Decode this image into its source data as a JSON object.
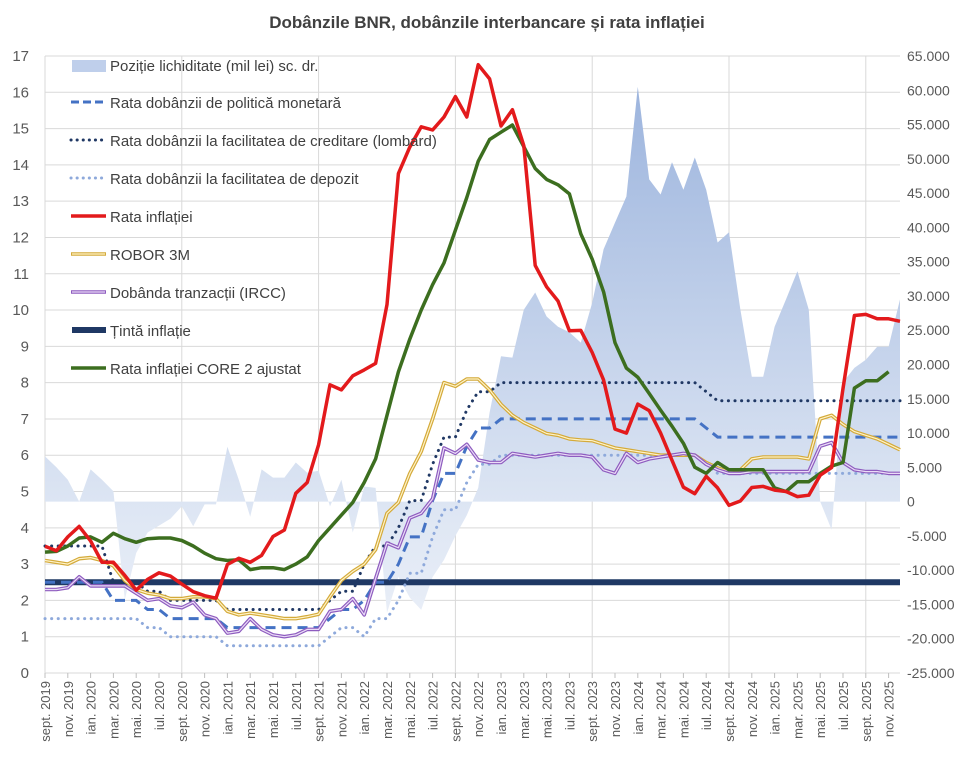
{
  "chart_data": {
    "type": "line",
    "title": "Dobânzile BNR, dobânzile interbancare și rata inflației",
    "legend_placement": "top-left (inside plot)",
    "grid": true,
    "x": [
      "sept. 2019",
      "oct. 2019",
      "nov. 2019",
      "dec. 2019",
      "ian. 2020",
      "feb. 2020",
      "mar. 2020",
      "apr. 2020",
      "mai. 2020",
      "iun. 2020",
      "iul. 2020",
      "aug. 2020",
      "sept. 2020",
      "oct. 2020",
      "nov. 2020",
      "dec. 2020",
      "ian. 2021",
      "feb. 2021",
      "mar. 2021",
      "apr. 2021",
      "mai. 2021",
      "iun. 2021",
      "iul. 2021",
      "aug. 2021",
      "sept. 2021",
      "oct. 2021",
      "nov. 2021",
      "dec. 2021",
      "ian. 2022",
      "feb. 2022",
      "mar. 2022",
      "apr. 2022",
      "mai. 2022",
      "iun. 2022",
      "iul. 2022",
      "aug. 2022",
      "sept. 2022",
      "oct. 2022",
      "nov. 2022",
      "dec. 2022",
      "ian. 2023",
      "feb. 2023",
      "mar. 2023",
      "apr. 2023",
      "mai. 2023",
      "iun. 2023",
      "iul. 2023",
      "aug. 2023",
      "sept. 2023",
      "oct. 2023",
      "nov. 2023",
      "dec. 2023",
      "ian. 2024",
      "feb. 2024",
      "mar. 2024",
      "apr. 2024",
      "mai. 2024",
      "iun. 2024",
      "iul. 2024",
      "aug. 2024",
      "sept. 2024",
      "oct. 2024",
      "nov. 2024",
      "dec. 2024",
      "ian. 2025",
      "feb. 2025",
      "mar. 2025",
      "apr. 2025",
      "mai. 2025",
      "iun. 2025",
      "iul. 2025",
      "aug. 2025",
      "sept. 2025",
      "oct. 2025",
      "nov. 2025",
      "dec. 2025"
    ],
    "x_tick_labels": [
      "sept. 2019",
      "nov. 2019",
      "ian. 2020",
      "mar. 2020",
      "mai. 2020",
      "iul. 2020",
      "sept. 2020",
      "nov. 2020",
      "ian. 2021",
      "mar. 2021",
      "mai. 2021",
      "iul. 2021",
      "sept. 2021",
      "nov. 2021",
      "ian. 2022",
      "mar. 2022",
      "mai. 2022",
      "iul. 2022",
      "sept. 2022",
      "nov. 2022",
      "ian. 2023",
      "mar. 2023",
      "mai. 2023",
      "iul. 2023",
      "sept. 2023",
      "nov. 2023",
      "ian. 2024",
      "mar. 2024",
      "mai. 2024",
      "iul. 2024",
      "sept. 2024",
      "nov. 2024",
      "ian. 2025",
      "mar. 2025",
      "mai. 2025",
      "iul. 2025",
      "sept. 2025",
      "nov. 2025"
    ],
    "y_left": {
      "range": [
        0,
        17
      ],
      "ticks": [
        "0",
        "1",
        "2",
        "3",
        "4",
        "5",
        "6",
        "7",
        "8",
        "9",
        "10",
        "11",
        "12",
        "13",
        "14",
        "15",
        "16",
        "17"
      ]
    },
    "y_right": {
      "range": [
        -25000,
        65000
      ],
      "ticks": [
        "-25.000",
        "-20.000",
        "-15.000",
        "-10.000",
        "-5.000",
        "0",
        "5.000",
        "10.000",
        "15.000",
        "20.000",
        "25.000",
        "30.000",
        "35.000",
        "40.000",
        "45.000",
        "50.000",
        "55.000",
        "60.000",
        "65.000"
      ]
    },
    "series": [
      {
        "name": "Poziție lichiditate (mil lei) sc. dr.",
        "kind": "area",
        "axis": "right",
        "color": "#8faadc",
        "values": [
          6600,
          5000,
          3200,
          0,
          4700,
          3200,
          1500,
          -14300,
          -7500,
          -4500,
          -3500,
          -2500,
          -700,
          -3600,
          -400,
          -400,
          8000,
          3200,
          -2200,
          4700,
          3500,
          3500,
          5700,
          4200,
          4500,
          -700,
          3200,
          -4500,
          2200,
          2000,
          -16200,
          -11000,
          -14000,
          -15800,
          -11000,
          -8500,
          -5000,
          -2000,
          2000,
          13000,
          21200,
          21000,
          28000,
          30500,
          27000,
          25500,
          24700,
          23200,
          29000,
          36800,
          40700,
          44500,
          60500,
          47000,
          44800,
          49500,
          45500,
          50200,
          45500,
          37800,
          39300,
          28000,
          18200,
          18200,
          25500,
          29500,
          33600,
          28000,
          0,
          -4100,
          17400,
          19500,
          20700,
          22600,
          22600,
          29500
        ]
      },
      {
        "name": "Rata dobânzii de politică monetară",
        "kind": "dashed",
        "axis": "left",
        "color": "#4472c4",
        "values": [
          2.5,
          2.5,
          2.5,
          2.5,
          2.5,
          2.5,
          2,
          2,
          2,
          1.75,
          1.75,
          1.5,
          1.5,
          1.5,
          1.5,
          1.5,
          1.25,
          1.25,
          1.25,
          1.25,
          1.25,
          1.25,
          1.25,
          1.25,
          1.25,
          1.5,
          1.75,
          1.75,
          2,
          2.5,
          2.5,
          3,
          3.75,
          3.75,
          4.75,
          5.5,
          5.5,
          6.25,
          6.75,
          6.75,
          7,
          7,
          7,
          7,
          7,
          7,
          7,
          7,
          7,
          7,
          7,
          7,
          7,
          7,
          7,
          7,
          7,
          7,
          6.75,
          6.5,
          6.5,
          6.5,
          6.5,
          6.5,
          6.5,
          6.5,
          6.5,
          6.5,
          6.5,
          6.5,
          6.5,
          6.5,
          6.5,
          6.5,
          6.5,
          6.5
        ]
      },
      {
        "name": "Rata dobânzii la facilitatea de creditare (lombard)",
        "kind": "dotted",
        "axis": "left",
        "color": "#203864",
        "values": [
          3.5,
          3.5,
          3.5,
          3.5,
          3.5,
          3.5,
          2.5,
          2.5,
          2.5,
          2.25,
          2.25,
          2,
          2,
          2,
          2,
          2,
          1.75,
          1.75,
          1.75,
          1.75,
          1.75,
          1.75,
          1.75,
          1.75,
          1.75,
          2,
          2.25,
          2.25,
          3,
          3.5,
          3.5,
          4,
          4.75,
          4.75,
          5.75,
          6.5,
          6.5,
          7.25,
          7.75,
          7.75,
          8,
          8,
          8,
          8,
          8,
          8,
          8,
          8,
          8,
          8,
          8,
          8,
          8,
          8,
          8,
          8,
          8,
          8,
          7.75,
          7.5,
          7.5,
          7.5,
          7.5,
          7.5,
          7.5,
          7.5,
          7.5,
          7.5,
          7.5,
          7.5,
          7.5,
          7.5,
          7.5,
          7.5,
          7.5,
          7.5
        ]
      },
      {
        "name": "Rata dobânzii la facilitatea de depozit",
        "kind": "dotted",
        "axis": "left",
        "color": "#8ea9db",
        "values": [
          1.5,
          1.5,
          1.5,
          1.5,
          1.5,
          1.5,
          1.5,
          1.5,
          1.5,
          1.25,
          1.25,
          1,
          1,
          1,
          1,
          1,
          0.75,
          0.75,
          0.75,
          0.75,
          0.75,
          0.75,
          0.75,
          0.75,
          0.75,
          1,
          1.25,
          1.25,
          1,
          1.5,
          1.5,
          2,
          2.75,
          2.75,
          3.75,
          4.5,
          4.5,
          5.25,
          5.75,
          5.75,
          6,
          6,
          6,
          6,
          6,
          6,
          6,
          6,
          6,
          6,
          6,
          6,
          6,
          6,
          6,
          6,
          6,
          6,
          5.75,
          5.5,
          5.5,
          5.5,
          5.5,
          5.5,
          5.5,
          5.5,
          5.5,
          5.5,
          5.5,
          5.5,
          5.5,
          5.5,
          5.5,
          5.5,
          5.5,
          5.5
        ]
      },
      {
        "name": "Rata inflației",
        "kind": "solid",
        "axis": "left",
        "color": "#e31a1c",
        "values": [
          3.49,
          3.37,
          3.75,
          4.04,
          3.64,
          3.05,
          3.05,
          2.69,
          2.28,
          2.58,
          2.76,
          2.67,
          2.45,
          2.24,
          2.13,
          2.06,
          2.99,
          3.16,
          3.05,
          3.24,
          3.76,
          3.94,
          4.95,
          5.25,
          6.29,
          7.94,
          7.8,
          8.19,
          8.35,
          8.53,
          10.15,
          13.76,
          14.49,
          15.05,
          14.96,
          15.32,
          15.88,
          15.32,
          16.76,
          16.37,
          15.07,
          15.52,
          14.53,
          11.23,
          10.64,
          10.25,
          9.43,
          9.44,
          8.83,
          8.07,
          6.72,
          6.61,
          7.41,
          7.23,
          6.61,
          5.86,
          5.12,
          4.94,
          5.42,
          5.1,
          4.62,
          4.74,
          5.11,
          5.14,
          5.04,
          5.0,
          4.86,
          4.9,
          5.45,
          5.66,
          7.84,
          9.85,
          9.88,
          9.76,
          9.76,
          9.69
        ]
      },
      {
        "name": "ROBOR 3M",
        "kind": "double",
        "axis": "left",
        "color": "#d4aa3a",
        "values": [
          3.1,
          3.05,
          3.0,
          3.15,
          3.18,
          3.1,
          2.95,
          2.55,
          2.3,
          2.2,
          2.15,
          2.05,
          2.05,
          2.1,
          2.1,
          2.05,
          1.7,
          1.6,
          1.65,
          1.6,
          1.55,
          1.5,
          1.5,
          1.55,
          1.62,
          2.1,
          2.55,
          2.8,
          3.0,
          3.4,
          4.4,
          4.7,
          5.5,
          6.1,
          7.0,
          8.0,
          7.9,
          8.1,
          8.1,
          7.8,
          7.4,
          7.1,
          6.9,
          6.75,
          6.6,
          6.55,
          6.45,
          6.42,
          6.4,
          6.3,
          6.2,
          6.15,
          6.1,
          6.05,
          6.0,
          6.0,
          6.0,
          6.0,
          5.8,
          5.65,
          5.55,
          5.6,
          5.9,
          5.95,
          5.95,
          5.95,
          5.95,
          5.9,
          7.0,
          7.1,
          6.85,
          6.65,
          6.55,
          6.45,
          6.3,
          6.15
        ]
      },
      {
        "name": "Dobânda tranzacții (IRCC)",
        "kind": "double",
        "axis": "left",
        "color": "#7030a0",
        "values": [
          2.3,
          2.3,
          2.35,
          2.65,
          2.4,
          2.4,
          2.4,
          2.4,
          2.2,
          2.0,
          2.05,
          1.85,
          1.8,
          1.95,
          1.6,
          1.5,
          1.1,
          1.15,
          1.5,
          1.2,
          1.05,
          1.0,
          1.05,
          1.2,
          1.2,
          1.7,
          1.75,
          2.05,
          1.6,
          2.6,
          3.58,
          3.45,
          4.27,
          4.4,
          4.8,
          6.2,
          6.05,
          6.3,
          5.87,
          5.8,
          5.8,
          6.05,
          6.0,
          5.95,
          6.0,
          6.05,
          6.0,
          6.0,
          5.95,
          5.6,
          5.5,
          6.05,
          5.8,
          5.9,
          5.95,
          6.0,
          6.05,
          6.0,
          5.75,
          5.6,
          5.5,
          5.5,
          5.55,
          5.55,
          5.55,
          5.55,
          5.55,
          5.55,
          6.25,
          6.35,
          5.8,
          5.6,
          5.55,
          5.55,
          5.5,
          5.5
        ]
      },
      {
        "name": "Țintă inflație",
        "kind": "thick",
        "axis": "left",
        "color": "#1f3864",
        "values": [
          2.5,
          2.5,
          2.5,
          2.5,
          2.5,
          2.5,
          2.5,
          2.5,
          2.5,
          2.5,
          2.5,
          2.5,
          2.5,
          2.5,
          2.5,
          2.5,
          2.5,
          2.5,
          2.5,
          2.5,
          2.5,
          2.5,
          2.5,
          2.5,
          2.5,
          2.5,
          2.5,
          2.5,
          2.5,
          2.5,
          2.5,
          2.5,
          2.5,
          2.5,
          2.5,
          2.5,
          2.5,
          2.5,
          2.5,
          2.5,
          2.5,
          2.5,
          2.5,
          2.5,
          2.5,
          2.5,
          2.5,
          2.5,
          2.5,
          2.5,
          2.5,
          2.5,
          2.5,
          2.5,
          2.5,
          2.5,
          2.5,
          2.5,
          2.5,
          2.5,
          2.5,
          2.5,
          2.5,
          2.5,
          2.5,
          2.5,
          2.5,
          2.5,
          2.5,
          2.5,
          2.5,
          2.5,
          2.5,
          2.5,
          2.5,
          2.5
        ]
      },
      {
        "name": "Rata inflației CORE 2 ajustat",
        "kind": "solid",
        "axis": "left",
        "color": "#3c6e1f",
        "values": [
          3.33,
          3.35,
          3.5,
          3.72,
          3.75,
          3.6,
          3.85,
          3.7,
          3.6,
          3.7,
          3.72,
          3.72,
          3.65,
          3.5,
          3.3,
          3.15,
          3.1,
          3.12,
          2.85,
          2.9,
          2.9,
          2.85,
          3.0,
          3.2,
          3.65,
          4.0,
          4.35,
          4.7,
          5.25,
          5.9,
          7.1,
          8.3,
          9.2,
          10.0,
          10.7,
          11.3,
          12.2,
          13.1,
          14.1,
          14.7,
          14.9,
          15.1,
          14.5,
          13.9,
          13.6,
          13.45,
          13.2,
          12.1,
          11.4,
          10.5,
          9.1,
          8.4,
          8.15,
          7.7,
          7.24,
          6.8,
          6.33,
          5.67,
          5.5,
          5.8,
          5.6,
          5.6,
          5.6,
          5.6,
          5.1,
          5.0,
          5.27,
          5.27,
          5.5,
          5.7,
          5.8,
          7.85,
          8.05,
          8.05,
          8.3,
          null
        ]
      }
    ]
  }
}
